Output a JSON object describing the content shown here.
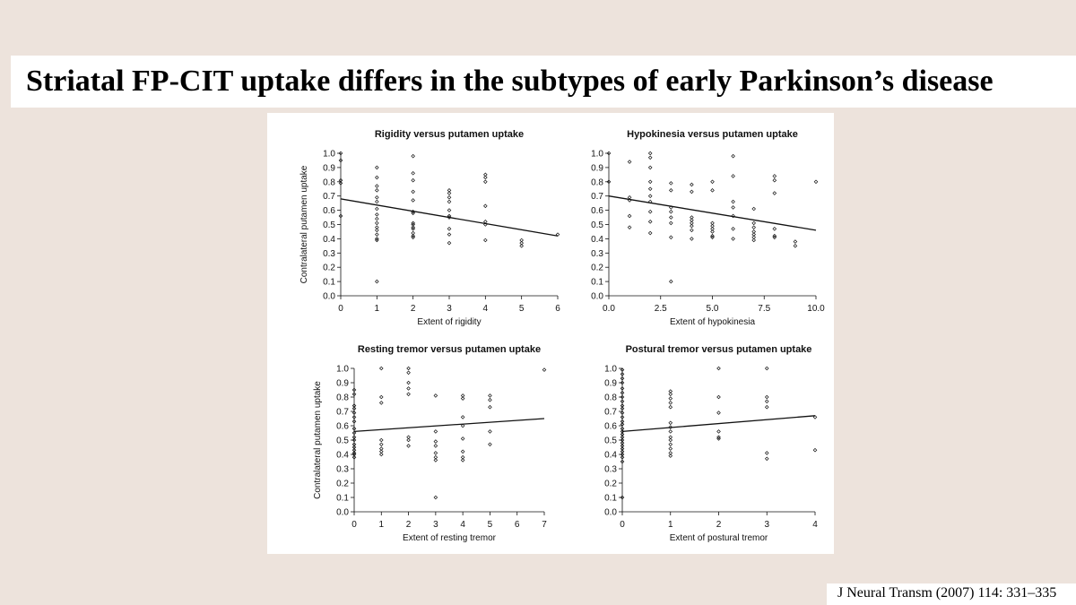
{
  "slide": {
    "title": "Striatal FP-CIT uptake differs in the subtypes of early Parkinson’s disease",
    "citation": "J Neural Transm (2007) 114: 331–335"
  },
  "colors": {
    "background": "#ede3dc",
    "panel": "#ffffff",
    "ink": "#111111"
  },
  "chart_data": [
    {
      "type": "scatter",
      "title": "Rigidity versus putamen uptake",
      "xlabel": "Extent of rigidity",
      "ylabel": "Contralateral putamen uptake",
      "xlim": [
        0,
        6
      ],
      "ylim": [
        0,
        1
      ],
      "xticks": [
        0,
        1,
        2,
        3,
        4,
        5,
        6
      ],
      "xtick_labels": [
        "0",
        "1",
        "2",
        "3",
        "4",
        "5",
        "6"
      ],
      "yticks": [
        0,
        0.1,
        0.2,
        0.3,
        0.4,
        0.5,
        0.6,
        0.7,
        0.8,
        0.9,
        1.0
      ],
      "ytick_labels": [
        "0.0",
        "0.1",
        "0.2",
        "0.3",
        "0.4",
        "0.5",
        "0.6",
        "0.7",
        "0.8",
        "0.9",
        "1.0"
      ],
      "grid": false,
      "points": [
        [
          0,
          1.0
        ],
        [
          0,
          0.95
        ],
        [
          0,
          0.81
        ],
        [
          0,
          0.79
        ],
        [
          0,
          0.56
        ],
        [
          1,
          0.9
        ],
        [
          1,
          0.83
        ],
        [
          1,
          0.77
        ],
        [
          1,
          0.74
        ],
        [
          1,
          0.69
        ],
        [
          1,
          0.66
        ],
        [
          1,
          0.61
        ],
        [
          1,
          0.57
        ],
        [
          1,
          0.54
        ],
        [
          1,
          0.51
        ],
        [
          1,
          0.48
        ],
        [
          1,
          0.46
        ],
        [
          1,
          0.43
        ],
        [
          1,
          0.4
        ],
        [
          1,
          0.39
        ],
        [
          1,
          0.1
        ],
        [
          2,
          0.98
        ],
        [
          2,
          0.86
        ],
        [
          2,
          0.81
        ],
        [
          2,
          0.73
        ],
        [
          2,
          0.67
        ],
        [
          2,
          0.59
        ],
        [
          2,
          0.58
        ],
        [
          2,
          0.51
        ],
        [
          2,
          0.5
        ],
        [
          2,
          0.48
        ],
        [
          2,
          0.47
        ],
        [
          2,
          0.44
        ],
        [
          2,
          0.42
        ],
        [
          2,
          0.41
        ],
        [
          3,
          0.74
        ],
        [
          3,
          0.72
        ],
        [
          3,
          0.69
        ],
        [
          3,
          0.66
        ],
        [
          3,
          0.6
        ],
        [
          3,
          0.56
        ],
        [
          3,
          0.55
        ],
        [
          3,
          0.47
        ],
        [
          3,
          0.43
        ],
        [
          3,
          0.37
        ],
        [
          4,
          0.85
        ],
        [
          4,
          0.83
        ],
        [
          4,
          0.8
        ],
        [
          4,
          0.63
        ],
        [
          4,
          0.52
        ],
        [
          4,
          0.5
        ],
        [
          4,
          0.39
        ],
        [
          5,
          0.39
        ],
        [
          5,
          0.37
        ],
        [
          5,
          0.35
        ],
        [
          6,
          0.43
        ]
      ],
      "trend_line": [
        [
          0,
          0.68
        ],
        [
          6,
          0.42
        ]
      ]
    },
    {
      "type": "scatter",
      "title": "Hypokinesia versus putamen uptake",
      "xlabel": "Extent of hypokinesia",
      "ylabel": "",
      "xlim": [
        0,
        10
      ],
      "ylim": [
        0,
        1
      ],
      "xticks": [
        0,
        2.5,
        5,
        7.5,
        10
      ],
      "xtick_labels": [
        "0.0",
        "2.5",
        "5.0",
        "7.5",
        "10.0"
      ],
      "yticks": [
        0,
        0.1,
        0.2,
        0.3,
        0.4,
        0.5,
        0.6,
        0.7,
        0.8,
        0.9,
        1.0
      ],
      "ytick_labels": [
        "0.0",
        "0.1",
        "0.2",
        "0.3",
        "0.4",
        "0.5",
        "0.6",
        "0.7",
        "0.8",
        "0.9",
        "1.0"
      ],
      "grid": false,
      "points": [
        [
          0,
          1.0
        ],
        [
          0,
          0.8
        ],
        [
          1,
          0.94
        ],
        [
          1,
          0.69
        ],
        [
          1,
          0.67
        ],
        [
          1,
          0.56
        ],
        [
          1,
          0.48
        ],
        [
          2,
          1.0
        ],
        [
          2,
          0.97
        ],
        [
          2,
          0.9
        ],
        [
          2,
          0.8
        ],
        [
          2,
          0.75
        ],
        [
          2,
          0.7
        ],
        [
          2,
          0.66
        ],
        [
          2,
          0.59
        ],
        [
          2,
          0.52
        ],
        [
          2,
          0.44
        ],
        [
          3,
          0.79
        ],
        [
          3,
          0.74
        ],
        [
          3,
          0.62
        ],
        [
          3,
          0.59
        ],
        [
          3,
          0.55
        ],
        [
          3,
          0.51
        ],
        [
          3,
          0.41
        ],
        [
          3,
          0.1
        ],
        [
          4,
          0.78
        ],
        [
          4,
          0.73
        ],
        [
          4,
          0.55
        ],
        [
          4,
          0.53
        ],
        [
          4,
          0.51
        ],
        [
          4,
          0.49
        ],
        [
          4,
          0.46
        ],
        [
          4,
          0.4
        ],
        [
          5,
          0.8
        ],
        [
          5,
          0.74
        ],
        [
          5,
          0.51
        ],
        [
          5,
          0.49
        ],
        [
          5,
          0.47
        ],
        [
          5,
          0.45
        ],
        [
          5,
          0.42
        ],
        [
          5,
          0.41
        ],
        [
          6,
          0.98
        ],
        [
          6,
          0.84
        ],
        [
          6,
          0.66
        ],
        [
          6,
          0.62
        ],
        [
          6,
          0.56
        ],
        [
          6,
          0.47
        ],
        [
          6,
          0.4
        ],
        [
          7,
          0.61
        ],
        [
          7,
          0.51
        ],
        [
          7,
          0.48
        ],
        [
          7,
          0.45
        ],
        [
          7,
          0.43
        ],
        [
          7,
          0.41
        ],
        [
          7,
          0.39
        ],
        [
          8,
          0.84
        ],
        [
          8,
          0.81
        ],
        [
          8,
          0.72
        ],
        [
          8,
          0.47
        ],
        [
          8,
          0.42
        ],
        [
          8,
          0.41
        ],
        [
          9,
          0.38
        ],
        [
          9,
          0.35
        ],
        [
          10,
          0.8
        ]
      ],
      "trend_line": [
        [
          0,
          0.7
        ],
        [
          10,
          0.46
        ]
      ]
    },
    {
      "type": "scatter",
      "title": "Resting tremor versus putamen uptake",
      "xlabel": "Extent of resting tremor",
      "ylabel": "Contralateral putamen uptake",
      "xlim": [
        0,
        7
      ],
      "ylim": [
        0,
        1
      ],
      "xticks": [
        0,
        1,
        2,
        3,
        4,
        5,
        6,
        7
      ],
      "xtick_labels": [
        "0",
        "1",
        "2",
        "3",
        "4",
        "5",
        "6",
        "7"
      ],
      "yticks": [
        0,
        0.1,
        0.2,
        0.3,
        0.4,
        0.5,
        0.6,
        0.7,
        0.8,
        0.9,
        1.0
      ],
      "ytick_labels": [
        "0.0",
        "0.1",
        "0.2",
        "0.3",
        "0.4",
        "0.5",
        "0.6",
        "0.7",
        "0.8",
        "0.9",
        "1.0"
      ],
      "grid": false,
      "points": [
        [
          0,
          0.85
        ],
        [
          0,
          0.82
        ],
        [
          0,
          0.74
        ],
        [
          0,
          0.72
        ],
        [
          0,
          0.69
        ],
        [
          0,
          0.66
        ],
        [
          0,
          0.63
        ],
        [
          0,
          0.58
        ],
        [
          0,
          0.55
        ],
        [
          0,
          0.52
        ],
        [
          0,
          0.5
        ],
        [
          0,
          0.47
        ],
        [
          0,
          0.45
        ],
        [
          0,
          0.43
        ],
        [
          0,
          0.41
        ],
        [
          0,
          0.4
        ],
        [
          0,
          0.38
        ],
        [
          1,
          1.0
        ],
        [
          1,
          0.8
        ],
        [
          1,
          0.76
        ],
        [
          1,
          0.5
        ],
        [
          1,
          0.47
        ],
        [
          1,
          0.44
        ],
        [
          1,
          0.42
        ],
        [
          1,
          0.4
        ],
        [
          2,
          1.0
        ],
        [
          2,
          0.97
        ],
        [
          2,
          0.9
        ],
        [
          2,
          0.86
        ],
        [
          2,
          0.82
        ],
        [
          2,
          0.52
        ],
        [
          2,
          0.5
        ],
        [
          2,
          0.46
        ],
        [
          3,
          0.81
        ],
        [
          3,
          0.56
        ],
        [
          3,
          0.49
        ],
        [
          3,
          0.46
        ],
        [
          3,
          0.41
        ],
        [
          3,
          0.38
        ],
        [
          3,
          0.36
        ],
        [
          3,
          0.1
        ],
        [
          4,
          0.81
        ],
        [
          4,
          0.79
        ],
        [
          4,
          0.66
        ],
        [
          4,
          0.6
        ],
        [
          4,
          0.51
        ],
        [
          4,
          0.42
        ],
        [
          4,
          0.38
        ],
        [
          4,
          0.36
        ],
        [
          5,
          0.81
        ],
        [
          5,
          0.78
        ],
        [
          5,
          0.73
        ],
        [
          5,
          0.56
        ],
        [
          5,
          0.47
        ],
        [
          7,
          0.99
        ]
      ],
      "trend_line": [
        [
          0,
          0.56
        ],
        [
          7,
          0.65
        ]
      ]
    },
    {
      "type": "scatter",
      "title": "Postural tremor versus putamen uptake",
      "xlabel": "Extent of postural tremor",
      "ylabel": "",
      "xlim": [
        0,
        4
      ],
      "ylim": [
        0,
        1
      ],
      "xticks": [
        0,
        1,
        2,
        3,
        4
      ],
      "xtick_labels": [
        "0",
        "1",
        "2",
        "3",
        "4"
      ],
      "yticks": [
        0,
        0.1,
        0.2,
        0.3,
        0.4,
        0.5,
        0.6,
        0.7,
        0.8,
        0.9,
        1.0
      ],
      "ytick_labels": [
        "0.0",
        "0.1",
        "0.2",
        "0.3",
        "0.4",
        "0.5",
        "0.6",
        "0.7",
        "0.8",
        "0.9",
        "1.0"
      ],
      "grid": false,
      "points": [
        [
          0,
          0.99
        ],
        [
          0,
          0.96
        ],
        [
          0,
          0.93
        ],
        [
          0,
          0.9
        ],
        [
          0,
          0.86
        ],
        [
          0,
          0.83
        ],
        [
          0,
          0.8
        ],
        [
          0,
          0.77
        ],
        [
          0,
          0.74
        ],
        [
          0,
          0.72
        ],
        [
          0,
          0.69
        ],
        [
          0,
          0.66
        ],
        [
          0,
          0.63
        ],
        [
          0,
          0.61
        ],
        [
          0,
          0.58
        ],
        [
          0,
          0.56
        ],
        [
          0,
          0.54
        ],
        [
          0,
          0.52
        ],
        [
          0,
          0.5
        ],
        [
          0,
          0.48
        ],
        [
          0,
          0.46
        ],
        [
          0,
          0.44
        ],
        [
          0,
          0.42
        ],
        [
          0,
          0.4
        ],
        [
          0,
          0.38
        ],
        [
          0,
          0.35
        ],
        [
          0,
          0.1
        ],
        [
          1,
          0.84
        ],
        [
          1,
          0.82
        ],
        [
          1,
          0.79
        ],
        [
          1,
          0.76
        ],
        [
          1,
          0.73
        ],
        [
          1,
          0.62
        ],
        [
          1,
          0.59
        ],
        [
          1,
          0.56
        ],
        [
          1,
          0.52
        ],
        [
          1,
          0.5
        ],
        [
          1,
          0.47
        ],
        [
          1,
          0.44
        ],
        [
          1,
          0.41
        ],
        [
          1,
          0.39
        ],
        [
          2,
          1.0
        ],
        [
          2,
          0.8
        ],
        [
          2,
          0.69
        ],
        [
          2,
          0.56
        ],
        [
          2,
          0.52
        ],
        [
          2,
          0.51
        ],
        [
          3,
          1.0
        ],
        [
          3,
          0.8
        ],
        [
          3,
          0.77
        ],
        [
          3,
          0.73
        ],
        [
          3,
          0.41
        ],
        [
          3,
          0.37
        ],
        [
          4,
          0.66
        ],
        [
          4,
          0.43
        ]
      ],
      "trend_line": [
        [
          0,
          0.56
        ],
        [
          4,
          0.67
        ]
      ]
    }
  ]
}
